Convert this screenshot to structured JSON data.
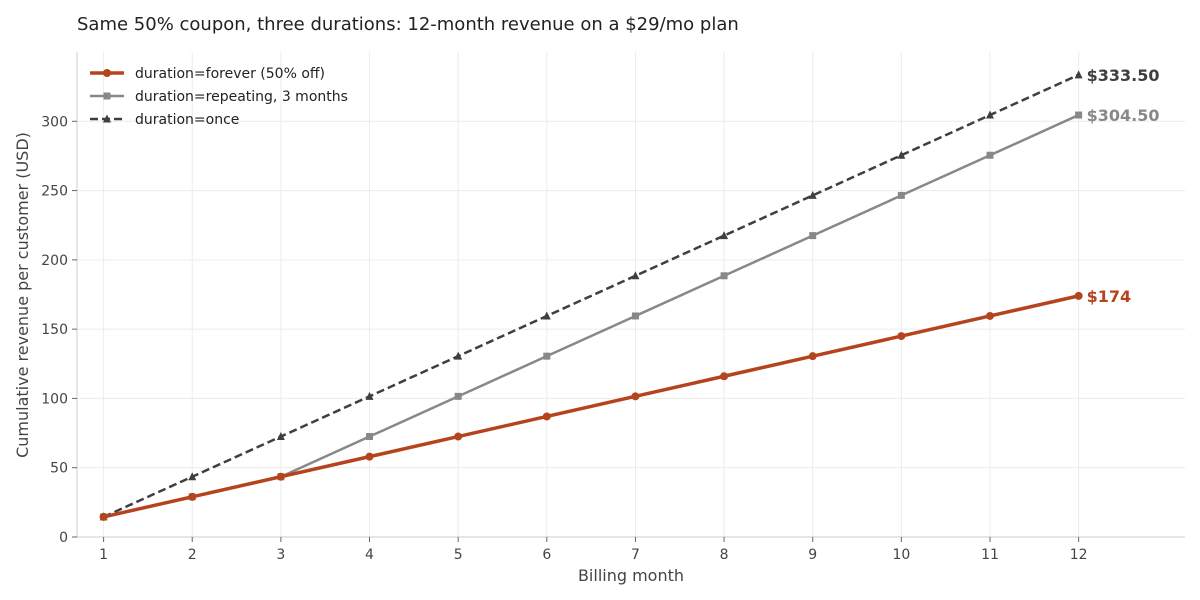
{
  "chart_data": {
    "type": "line",
    "title": "Same 50% coupon, three durations: 12-month revenue on a $29/mo plan",
    "xlabel": "Billing month",
    "ylabel": "Cumulative revenue per customer (USD)",
    "x": [
      1,
      2,
      3,
      4,
      5,
      6,
      7,
      8,
      9,
      10,
      11,
      12
    ],
    "xlim": [
      0.7,
      13.2
    ],
    "ylim": [
      0,
      350
    ],
    "yticks": [
      0,
      50,
      100,
      150,
      200,
      250,
      300
    ],
    "grid": true,
    "legend_position": "top-left",
    "series": [
      {
        "name": "duration=forever (50% off)",
        "color": "#b5441e",
        "marker": "circle",
        "dash": "solid",
        "values": [
          14.5,
          29,
          43.5,
          58,
          72.5,
          87,
          101.5,
          116,
          130.5,
          145,
          159.5,
          174
        ],
        "end_label": "$174"
      },
      {
        "name": "duration=repeating, 3 months",
        "color": "#888888",
        "marker": "square",
        "dash": "solid",
        "values": [
          14.5,
          29,
          43.5,
          72.5,
          101.5,
          130.5,
          159.5,
          188.5,
          217.5,
          246.5,
          275.5,
          304.5
        ],
        "end_label": "$304.50"
      },
      {
        "name": "duration=once",
        "color": "#3f3f3f",
        "marker": "triangle",
        "dash": "dashed",
        "values": [
          14.5,
          43.5,
          72.5,
          101.5,
          130.5,
          159.5,
          188.5,
          217.5,
          246.5,
          275.5,
          304.5,
          333.5
        ],
        "end_label": "$333.50"
      }
    ]
  }
}
